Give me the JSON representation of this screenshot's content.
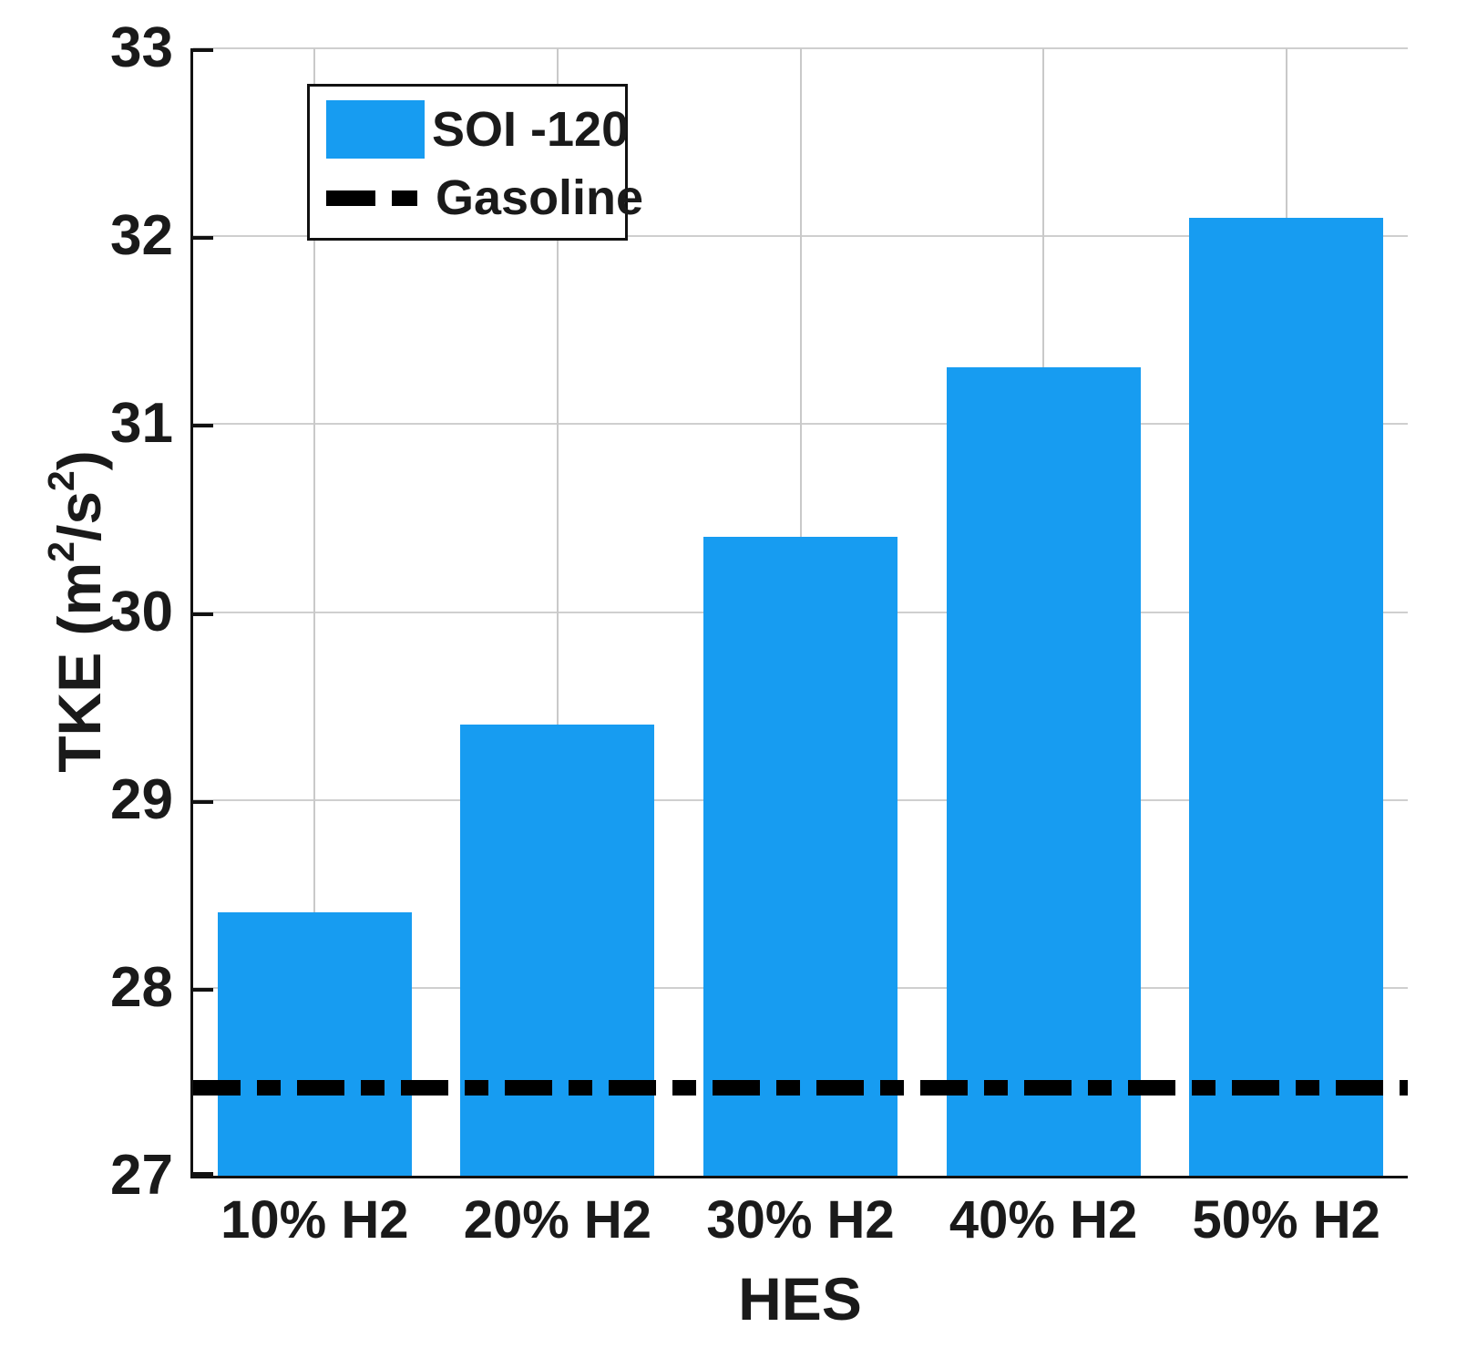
{
  "chart_data": {
    "type": "bar",
    "title": "",
    "categories": [
      "10% H2",
      "20% H2",
      "30% H2",
      "40% H2",
      "50% H2"
    ],
    "series": [
      {
        "name": "SOI -120",
        "type": "bar",
        "color": "#179cf1",
        "values": [
          28.4,
          29.4,
          30.4,
          31.3,
          32.1
        ]
      },
      {
        "name": "Gasoline",
        "type": "reference-line",
        "color": "#000000",
        "line_style": "dash-dot",
        "value": 27.47
      }
    ],
    "xlabel": "HES",
    "ylabel": "TKE (m^2/s^2)",
    "ylabel_parts": [
      "TKE (m",
      "2",
      "/s",
      "2",
      ")"
    ],
    "ylim": [
      27,
      33
    ],
    "yticks": [
      27,
      28,
      29,
      30,
      31,
      32,
      33
    ],
    "grid": true,
    "legend_position": "top-left"
  }
}
